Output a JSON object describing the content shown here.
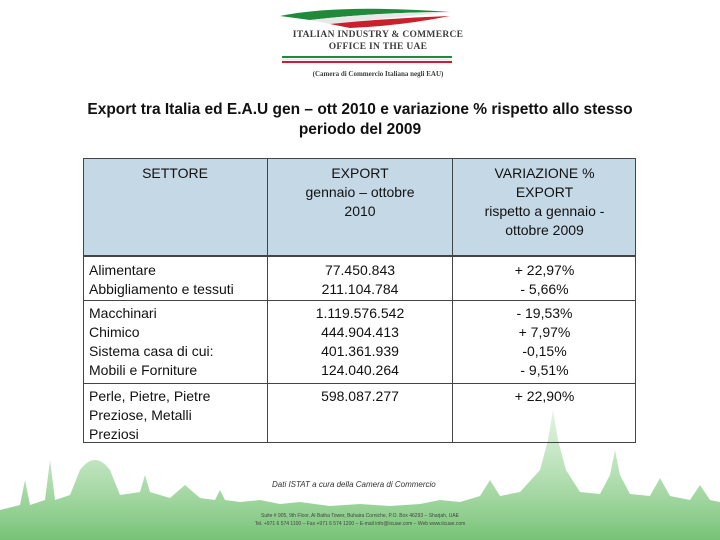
{
  "logo": {
    "line1": "ITALIAN INDUSTRY & COMMERCE",
    "line2": "OFFICE IN THE UAE",
    "line3": "(Camera di Commercio Italiana negli EAU)"
  },
  "title": "Export tra Italia ed E.A.U gen – ott 2010 e variazione % rispetto allo stesso periodo del 2009",
  "table": {
    "headers": [
      "SETTORE",
      "EXPORT\ngennaio – ottobre\n2010",
      "VARIAZIONE %\nEXPORT\nrispetto a gennaio -\nottobre 2009"
    ],
    "rows": [
      {
        "settore": "Alimentare\nAbbigliamento e tessuti",
        "export": "77.450.843\n211.104.784",
        "variazione": "+ 22,97%\n- 5,66%"
      },
      {
        "settore": "Macchinari\nChimico\nSistema casa di cui:\nMobili e Forniture",
        "export": "1.119.576.542\n444.904.413\n401.361.939\n124.040.264",
        "variazione": "- 19,53%\n+ 7,97%\n-0,15%\n- 9,51%"
      },
      {
        "settore": "Perle, Pietre, Pietre\nPreziose, Metalli\nPreziosi",
        "export": "598.087.277",
        "variazione": "+ 22,90%"
      }
    ]
  },
  "source": "Dati ISTAT a cura della Camera di Commercio",
  "address": "Suite # 905, 9th Floor, Al Batha Tower, Buhaira Corniche, P.O. Box 46293 – Sharjah, UAE\nTel. +971 6 574 1100 – Fax +971 6 574 1200 – E-mail info@iicuae.com – Web www.iicuae.com",
  "colors": {
    "header_bg": "#c4d8e6",
    "flag_green": "#1f8a3b",
    "flag_red": "#c8202c",
    "skyline_green": "#7cc47a"
  }
}
